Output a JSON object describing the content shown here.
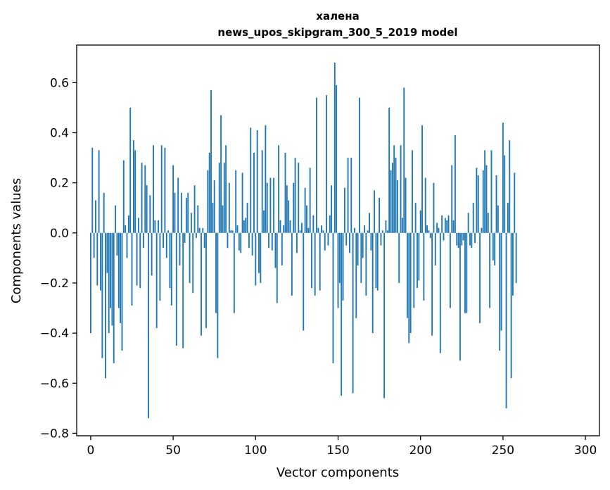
{
  "chart_data": {
    "type": "bar",
    "title": "халена",
    "subtitle": "news_upos_skipgram_300_5_2019 model",
    "xlabel": "Vector components",
    "ylabel": "Components values",
    "xlim": [
      -8.5,
      308.5
    ],
    "ylim": [
      -0.81,
      0.75
    ],
    "xticks": [
      0,
      50,
      100,
      150,
      200,
      250,
      300
    ],
    "yticks": [
      -0.8,
      -0.6,
      -0.4,
      -0.2,
      0.0,
      0.2,
      0.4,
      0.6
    ],
    "ytick_labels": [
      "−0.8",
      "−0.6",
      "−0.4",
      "−0.2",
      "0.0",
      "0.2",
      "0.4",
      "0.6"
    ],
    "bar_color": "#1f77b4",
    "grid": false,
    "values": [
      -0.4,
      0.34,
      -0.1,
      0.13,
      -0.21,
      0.33,
      -0.23,
      -0.5,
      0.16,
      -0.58,
      -0.16,
      -0.4,
      -0.3,
      -0.37,
      -0.52,
      0.11,
      -0.09,
      -0.3,
      -0.36,
      -0.47,
      0.29,
      0.03,
      -0.1,
      0.07,
      0.5,
      -0.29,
      0.37,
      0.33,
      -0.21,
      0.06,
      -0.22,
      0.28,
      -0.06,
      0.27,
      0.19,
      -0.74,
      0.15,
      -0.17,
      0.35,
      0.05,
      -0.38,
      0.05,
      -0.27,
      0.35,
      -0.06,
      0.34,
      -0.1,
      0.01,
      -0.22,
      -0.29,
      0.27,
      0.16,
      -0.45,
      0.22,
      -0.13,
      0.16,
      -0.46,
      -0.04,
      0.14,
      0.16,
      -0.2,
      0.08,
      -0.24,
      0.19,
      -0.02,
      0.11,
      0.02,
      -0.41,
      0.02,
      -0.06,
      -0.38,
      0.25,
      0.32,
      0.57,
      0.12,
      0.21,
      -0.32,
      -0.5,
      0.28,
      0.47,
      0.11,
      0.28,
      0.35,
      -0.06,
      0.2,
      0.01,
      0.01,
      -0.32,
      0.25,
      0.03,
      -0.07,
      -0.08,
      0.24,
      0.05,
      0.06,
      0.12,
      -0.06,
      0.42,
      -0.09,
      0.32,
      -0.21,
      0.41,
      -0.16,
      -0.2,
      0.33,
      0.09,
      0.43,
      0.2,
      -0.06,
      0.22,
      -0.07,
      0.22,
      -0.14,
      -0.28,
      0.35,
      0.05,
      -0.13,
      0.03,
      0.32,
      0.19,
      0.13,
      0.05,
      -0.25,
      0.2,
      0.3,
      -0.08,
      0.28,
      0.01,
      0.04,
      -0.39,
      0.18,
      0.11,
      0.02,
      0.26,
      -0.22,
      0.07,
      -0.25,
      0.54,
      0.02,
      -0.23,
      0.03,
      0.01,
      -0.07,
      0.55,
      -0.05,
      0.07,
      0.19,
      -0.52,
      0.68,
      0.59,
      -0.3,
      -0.2,
      -0.65,
      -0.27,
      0.18,
      -0.05,
      0.3,
      -0.08,
      0.3,
      -0.64,
      0.02,
      -0.34,
      -0.13,
      0.54,
      -0.2,
      -0.1,
      0.03,
      -0.25,
      0.01,
      0.08,
      -0.07,
      -0.4,
      0.17,
      -0.22,
      -0.23,
      0.14,
      -0.05,
      0.01,
      -0.66,
      0.05,
      0.01,
      0.5,
      0.25,
      0.28,
      0.35,
      0.3,
      0.21,
      -0.2,
      0.35,
      0.06,
      0.58,
      0.22,
      -0.34,
      -0.44,
      -0.4,
      0.33,
      -0.3,
      0.12,
      -0.22,
      -0.19,
      0.09,
      0.43,
      -0.27,
      0.22,
      0.03,
      0.01,
      -0.02,
      -0.41,
      0.2,
      -0.13,
      0.04,
      0.02,
      -0.48,
      0.07,
      -0.03,
      0.06,
      0.05,
      0.07,
      -0.3,
      0.27,
      0.05,
      0.39,
      -0.05,
      -0.06,
      -0.51,
      -0.05,
      -0.03,
      -0.32,
      -0.32,
      0.08,
      -0.05,
      -0.06,
      0.12,
      -0.04,
      0.26,
      0.23,
      -0.36,
      0.02,
      0.25,
      0.33,
      0.27,
      0.08,
      -0.3,
      0.33,
      -0.11,
      -0.13,
      0.23,
      0.11,
      -0.47,
      -0.39,
      0.44,
      0.31,
      -0.7,
      0.12,
      0.37,
      -0.58,
      -0.25,
      0.24,
      -0.2
    ]
  }
}
